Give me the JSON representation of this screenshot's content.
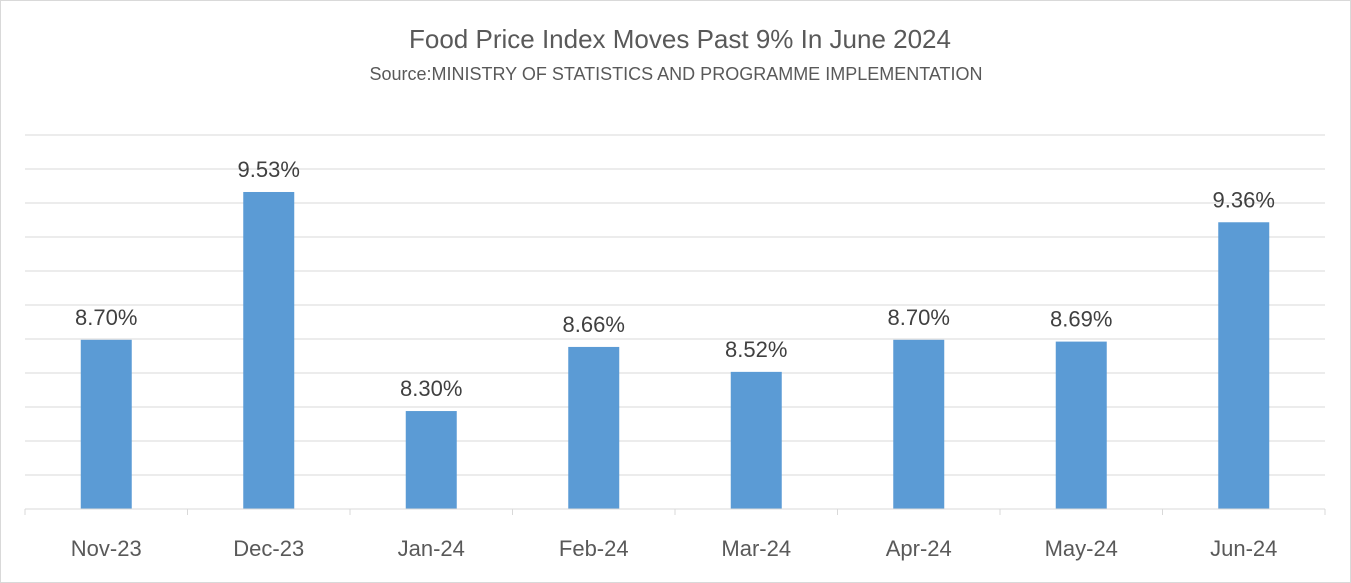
{
  "chart_data": {
    "type": "bar",
    "title": "Food Price Index Moves Past 9% In June 2024",
    "subtitle": "Source:MINISTRY OF STATISTICS AND PROGRAMME IMPLEMENTATION",
    "categories": [
      "Nov-23",
      "Dec-23",
      "Jan-24",
      "Feb-24",
      "Mar-24",
      "Apr-24",
      "May-24",
      "Jun-24"
    ],
    "values": [
      8.7,
      9.53,
      8.3,
      8.66,
      8.52,
      8.7,
      8.69,
      9.36
    ],
    "data_labels": [
      "8.70%",
      "9.53%",
      "8.30%",
      "8.66%",
      "8.52%",
      "8.70%",
      "8.69%",
      "9.36%"
    ],
    "xlabel": "",
    "ylabel": "",
    "ylim": [
      7.75,
      9.85
    ],
    "grid": true,
    "legend": "none",
    "bar_color": "#5b9bd5",
    "grid_color": "#d9d9d9"
  }
}
